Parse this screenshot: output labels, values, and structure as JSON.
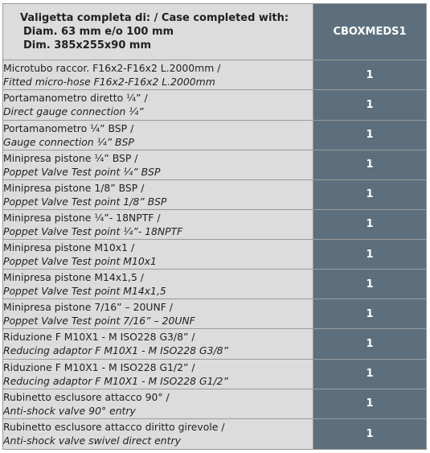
{
  "header": {
    "line1": "Valigetta completa di: / Case completed with:",
    "line2": "Diam. 63 mm e/o 100 mm",
    "line3": "Dim. 385x255x90 mm",
    "code": "CBOXMEDS1"
  },
  "rows": [
    {
      "it": "Microtubo raccor. F16x2-F16x2 L.2000mm /",
      "en": "Fitted micro-hose F16x2-F16x2 L.2000mm",
      "qty": "1"
    },
    {
      "it": "Portamanometro diretto ¼” /",
      "en": "Direct gauge connection ¼”",
      "qty": "1"
    },
    {
      "it": "Portamanometro ¼” BSP /",
      "en": "Gauge connection ¼” BSP",
      "qty": "1"
    },
    {
      "it": "Minipresa pistone ¼” BSP /",
      "en": "Poppet Valve Test point ¼” BSP",
      "qty": "1"
    },
    {
      "it": "Minipresa pistone 1/8” BSP /",
      "en": "Poppet Valve Test point 1/8” BSP",
      "qty": "1"
    },
    {
      "it": "Minipresa pistone ¼”- 18NPTF /",
      "en": "Poppet Valve Test point ¼”- 18NPTF",
      "qty": "1"
    },
    {
      "it": "Minipresa pistone M10x1 /",
      "en": "Poppet Valve Test point M10x1",
      "qty": "1"
    },
    {
      "it": "Minipresa pistone M14x1,5 /",
      "en": "Poppet Valve Test point M14x1,5",
      "qty": "1"
    },
    {
      "it": "Minipresa pistone 7/16” – 20UNF /",
      "en": "Poppet Valve Test point 7/16” – 20UNF",
      "qty": "1"
    },
    {
      "it": "Riduzione F M10X1 - M ISO228 G3/8” /",
      "en": "Reducing adaptor F M10X1 - M ISO228 G3/8”",
      "qty": "1"
    },
    {
      "it": "Riduzione F M10X1 - M ISO228 G1/2” /",
      "en": "Reducing adaptor F M10X1 - M ISO228 G1/2”",
      "qty": "1"
    },
    {
      "it": "Rubinetto esclusore attacco 90° /",
      "en": "Anti-shock valve 90° entry",
      "qty": "1"
    },
    {
      "it": "Rubinetto esclusore attacco diritto girevole /",
      "en": "Anti-shock valve swivel direct entry",
      "qty": "1"
    }
  ]
}
